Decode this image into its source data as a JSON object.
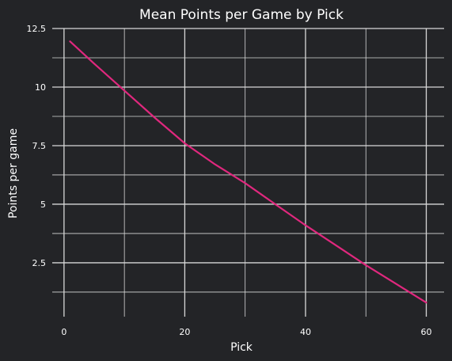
{
  "chart_data": {
    "type": "line",
    "title": "Mean Points per Game by Pick",
    "xlabel": "Pick",
    "ylabel": "Points per game",
    "xlim": [
      -1.95,
      62.95
    ],
    "ylim": [
      0.2,
      12.5
    ],
    "x_ticks": [
      0,
      20,
      40,
      60
    ],
    "x_tick_labels": [
      "0",
      "20",
      "40",
      "60"
    ],
    "x_minor_ticks": [
      10,
      30,
      50
    ],
    "y_ticks": [
      2.5,
      5,
      7.5,
      10,
      12.5
    ],
    "y_tick_labels": [
      "2.5",
      "5",
      "7.5",
      "10",
      "12.5"
    ],
    "y_minor_ticks": [
      1.25,
      3.75,
      6.25,
      8.75,
      11.25
    ],
    "grid": true,
    "colors": {
      "background": "#232427",
      "grid": "#d8d8d8",
      "line": "#e0287e",
      "text": "#ffffff"
    },
    "series": [
      {
        "x": [
          1,
          5,
          10,
          15,
          20,
          25,
          30,
          35,
          40,
          45,
          50,
          55,
          60
        ],
        "values": [
          11.95,
          11.0,
          9.85,
          8.7,
          7.6,
          6.7,
          5.9,
          5.0,
          4.1,
          3.25,
          2.4,
          1.6,
          0.8
        ]
      }
    ]
  }
}
